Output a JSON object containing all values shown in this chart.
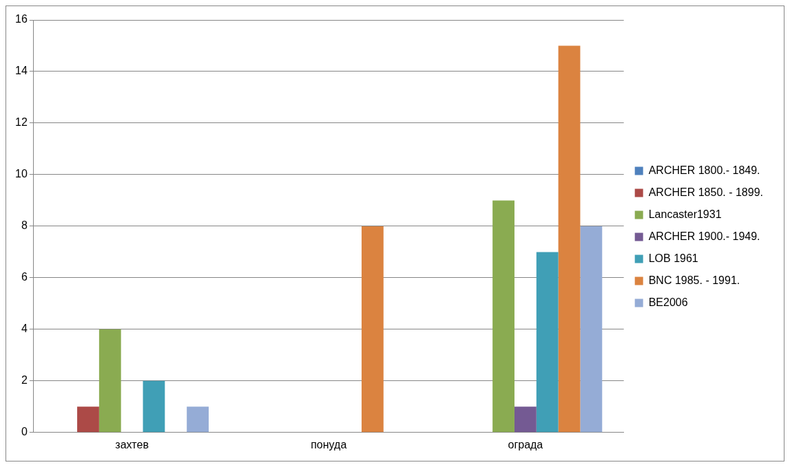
{
  "chart_data": {
    "type": "bar",
    "categories": [
      "захтев",
      "понуда",
      "ограда"
    ],
    "series": [
      {
        "name": "ARCHER 1800.- 1849.",
        "color": "#4f81bd",
        "values": [
          0,
          0,
          0
        ]
      },
      {
        "name": "ARCHER 1850. - 1899.",
        "color": "#ac4a47",
        "values": [
          1,
          0,
          0
        ]
      },
      {
        "name": "Lancaster1931",
        "color": "#8aab51",
        "values": [
          4,
          0,
          9
        ]
      },
      {
        "name": "ARCHER 1900.- 1949.",
        "color": "#745a93",
        "values": [
          0,
          0,
          1
        ]
      },
      {
        "name": "LOB 1961",
        "color": "#409fb6",
        "values": [
          2,
          0,
          7
        ]
      },
      {
        "name": "BNC 1985. - 1991.",
        "color": "#db8340",
        "values": [
          0,
          8,
          15
        ]
      },
      {
        "name": "BE2006",
        "color": "#95acd6",
        "values": [
          1,
          0,
          8
        ]
      }
    ],
    "ylim": [
      0,
      16
    ],
    "yticks": [
      0,
      2,
      4,
      6,
      8,
      10,
      12,
      14,
      16
    ],
    "grid": "y",
    "legend": "right"
  }
}
